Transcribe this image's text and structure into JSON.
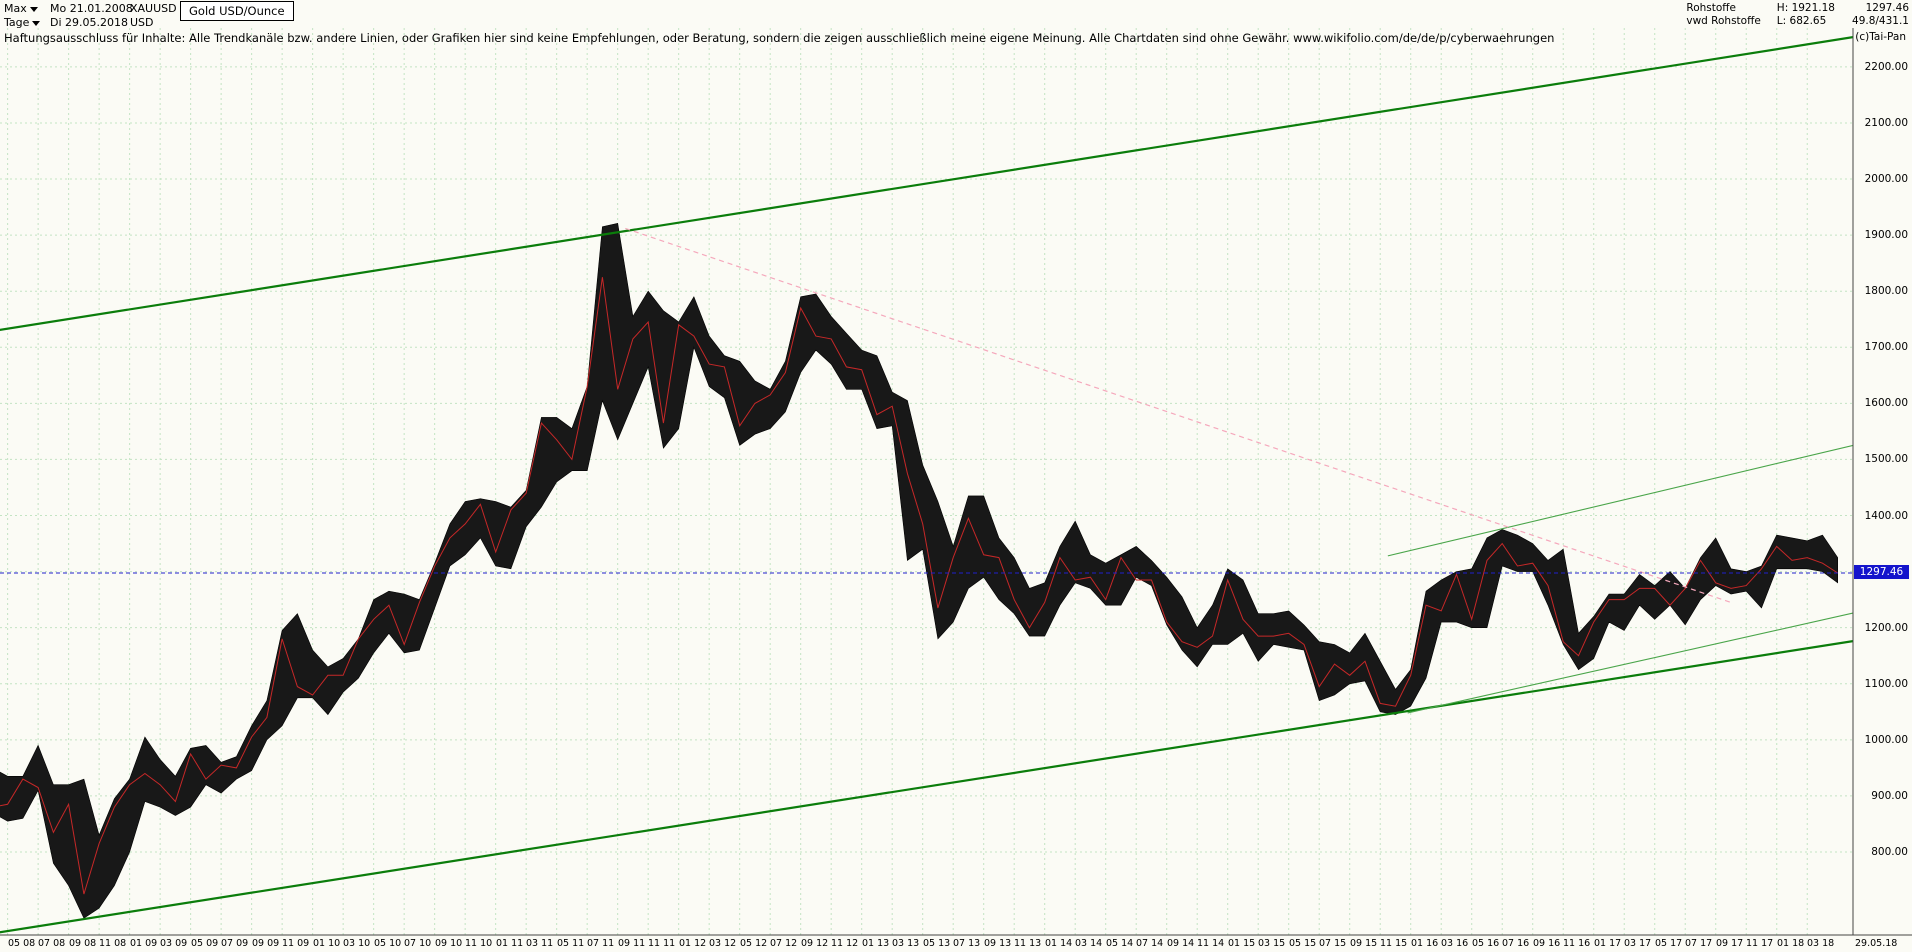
{
  "header": {
    "range_selector": "Max",
    "start_date": "Mo 21.01.2008",
    "symbol": "XAUUSD",
    "instrument_tooltip": "Gold USD/Ounce",
    "period_selector": "Tage",
    "end_date": "Di 29.05.2018",
    "currency": "USD",
    "icons": {
      "range_dropdown": "chevron-down",
      "period_dropdown": "chevron-down"
    }
  },
  "info_panel": {
    "rows": [
      {
        "label": "Rohstoffe",
        "stat": "H: 1921.18",
        "value": "1297.46"
      },
      {
        "label": "vwd Rohstoffe",
        "stat": "L: 682.65",
        "value": "49.8/431.1"
      }
    ],
    "copyright": "(c)Tai-Pan"
  },
  "disclaimer": "Haftungsausschluss für Inhalte: Alle Trendkanäle bzw. andere Linien, oder Grafiken hier sind keine Empfehlungen, oder Beratung, sondern die zeigen ausschließlich meine eigene Meinung. Alle Chartdaten sind ohne Gewähr.  www.wikifolio.com/de/de/p/cyberwaehrungen",
  "price_axis": {
    "ticks": [
      2200,
      2100,
      2000,
      1900,
      1800,
      1700,
      1600,
      1500,
      1400,
      1200,
      1100,
      1000,
      900,
      800
    ],
    "current_price": 1297.46,
    "current_price_label": "1297.46",
    "label_bg": "#1414cc"
  },
  "time_axis": {
    "labels": [
      "05 08",
      "07 08",
      "09 08",
      "11 08",
      "01 09",
      "03 09",
      "05 09",
      "07 09",
      "09 09",
      "11 09",
      "01 10",
      "03 10",
      "05 10",
      "07 10",
      "09 10",
      "11 10",
      "01 11",
      "03 11",
      "05 11",
      "07 11",
      "09 11",
      "11 11",
      "01 12",
      "03 12",
      "05 12",
      "07 12",
      "09 12",
      "11 12",
      "01 13",
      "03 13",
      "05 13",
      "07 13",
      "09 13",
      "11 13",
      "01 14",
      "03 14",
      "05 14",
      "07 14",
      "09 14",
      "11 14",
      "01 15",
      "03 15",
      "05 15",
      "07 15",
      "09 15",
      "11 15",
      "01 16",
      "03 16",
      "05 16",
      "07 16",
      "09 16",
      "11 16",
      "01 17",
      "03 17",
      "05 17",
      "07 17",
      "09 17",
      "11 17",
      "01 18",
      "03 18"
    ],
    "end_label": "29.05.18"
  },
  "chart_data": {
    "type": "candlestick",
    "title": "Gold USD/Ounce",
    "symbol": "XAUUSD",
    "start_month": "2008-01",
    "interval": "monthly (approximation of daily candles)",
    "ylim": [
      652,
      2239
    ],
    "x_range_month_index": [
      3.5,
      125
    ],
    "grid": true,
    "high": [
      930,
      975,
      1030,
      950,
      935,
      935,
      990,
      920,
      920,
      930,
      830,
      895,
      930,
      1005,
      965,
      935,
      985,
      990,
      960,
      970,
      1025,
      1070,
      1195,
      1225,
      1160,
      1130,
      1145,
      1180,
      1250,
      1265,
      1260,
      1250,
      1315,
      1385,
      1425,
      1430,
      1425,
      1415,
      1445,
      1575,
      1575,
      1555,
      1630,
      1915,
      1921,
      1755,
      1800,
      1765,
      1745,
      1790,
      1720,
      1685,
      1675,
      1640,
      1625,
      1675,
      1790,
      1795,
      1755,
      1725,
      1695,
      1685,
      1620,
      1605,
      1490,
      1425,
      1345,
      1435,
      1435,
      1360,
      1325,
      1270,
      1280,
      1345,
      1390,
      1330,
      1315,
      1330,
      1345,
      1320,
      1290,
      1255,
      1200,
      1240,
      1305,
      1285,
      1225,
      1225,
      1230,
      1205,
      1175,
      1170,
      1155,
      1190,
      1140,
      1090,
      1125,
      1265,
      1285,
      1300,
      1305,
      1360,
      1375,
      1365,
      1350,
      1320,
      1340,
      1190,
      1220,
      1260,
      1260,
      1295,
      1275,
      1300,
      1270,
      1325,
      1360,
      1305,
      1300,
      1310,
      1365,
      1360,
      1355,
      1365,
      1325
    ],
    "low": [
      850,
      900,
      900,
      870,
      855,
      860,
      910,
      780,
      740,
      682,
      700,
      740,
      800,
      890,
      880,
      865,
      880,
      920,
      905,
      930,
      945,
      1000,
      1025,
      1075,
      1075,
      1045,
      1085,
      1110,
      1155,
      1190,
      1155,
      1160,
      1235,
      1310,
      1330,
      1360,
      1310,
      1305,
      1380,
      1415,
      1460,
      1480,
      1480,
      1605,
      1535,
      1600,
      1665,
      1520,
      1555,
      1700,
      1630,
      1610,
      1525,
      1545,
      1555,
      1585,
      1655,
      1695,
      1670,
      1625,
      1625,
      1555,
      1560,
      1320,
      1340,
      1180,
      1210,
      1270,
      1290,
      1250,
      1225,
      1185,
      1185,
      1240,
      1280,
      1270,
      1240,
      1240,
      1290,
      1275,
      1205,
      1160,
      1130,
      1170,
      1170,
      1190,
      1140,
      1170,
      1165,
      1160,
      1070,
      1080,
      1100,
      1105,
      1050,
      1045,
      1060,
      1110,
      1210,
      1210,
      1200,
      1200,
      1310,
      1300,
      1300,
      1240,
      1170,
      1125,
      1145,
      1210,
      1195,
      1240,
      1215,
      1240,
      1205,
      1250,
      1275,
      1260,
      1265,
      1235,
      1305,
      1305,
      1305,
      1300,
      1280
    ],
    "close": [
      925,
      970,
      915,
      880,
      885,
      930,
      915,
      835,
      885,
      725,
      815,
      880,
      920,
      940,
      920,
      890,
      975,
      930,
      955,
      950,
      1005,
      1040,
      1180,
      1095,
      1080,
      1115,
      1115,
      1180,
      1215,
      1240,
      1170,
      1245,
      1310,
      1360,
      1385,
      1420,
      1335,
      1410,
      1440,
      1565,
      1535,
      1500,
      1630,
      1825,
      1625,
      1715,
      1745,
      1565,
      1740,
      1720,
      1670,
      1665,
      1560,
      1600,
      1615,
      1655,
      1770,
      1720,
      1715,
      1665,
      1660,
      1580,
      1595,
      1475,
      1385,
      1235,
      1325,
      1395,
      1330,
      1325,
      1250,
      1200,
      1245,
      1325,
      1285,
      1290,
      1250,
      1325,
      1285,
      1285,
      1210,
      1175,
      1165,
      1185,
      1285,
      1215,
      1185,
      1185,
      1190,
      1170,
      1095,
      1135,
      1115,
      1140,
      1065,
      1060,
      1115,
      1240,
      1230,
      1295,
      1215,
      1320,
      1350,
      1310,
      1315,
      1275,
      1175,
      1150,
      1210,
      1250,
      1250,
      1270,
      1270,
      1240,
      1270,
      1320,
      1280,
      1270,
      1275,
      1305,
      1345,
      1320,
      1325,
      1315,
      1297.46
    ],
    "trend_lines": [
      {
        "name": "channel-upper",
        "style": "solid",
        "color": "#0b7d0b",
        "width": 2.2,
        "p1": [
          0,
          1716
        ],
        "p2": [
          125,
          2253
        ]
      },
      {
        "name": "channel-lower",
        "style": "solid",
        "color": "#0b7d0b",
        "width": 2.2,
        "p1": [
          0,
          642
        ],
        "p2": [
          125,
          1176
        ]
      },
      {
        "name": "minor-upper",
        "style": "solid",
        "color": "#4aa54a",
        "width": 1.1,
        "p1": [
          94.5,
          1328
        ],
        "p2": [
          125,
          1525
        ]
      },
      {
        "name": "minor-lower",
        "style": "solid",
        "color": "#4aa54a",
        "width": 1.1,
        "p1": [
          95.8,
          1048
        ],
        "p2": [
          125,
          1226
        ]
      },
      {
        "name": "downtrend-resistance",
        "style": "dashed",
        "color": "#f5a8bc",
        "width": 1.2,
        "p1": [
          44.5,
          1912
        ],
        "p2": [
          117,
          1245
        ]
      }
    ],
    "current_price_line": {
      "price": 1297.46,
      "color": "#2020cc",
      "style": "dashed"
    },
    "candle_colors": {
      "body": "#181818",
      "down": "#c62828"
    }
  }
}
